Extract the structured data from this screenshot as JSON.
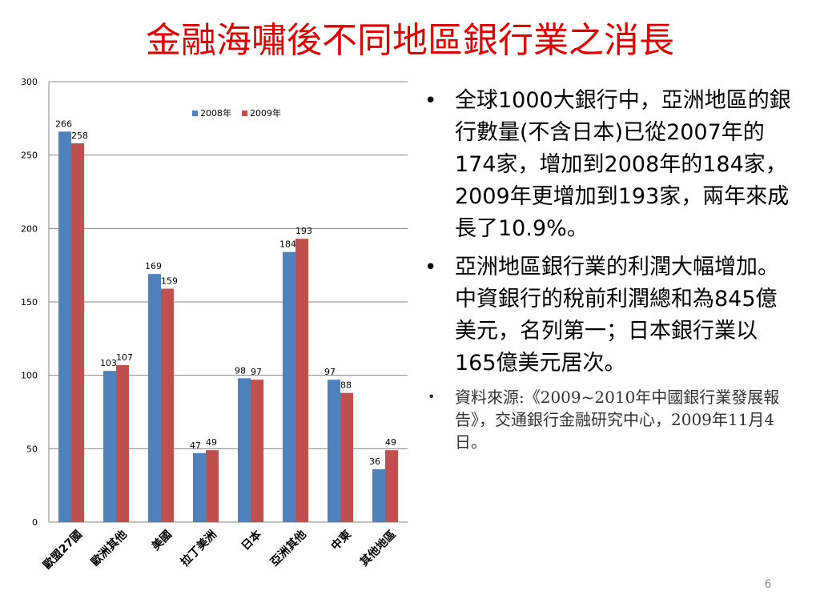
{
  "slide": {
    "title": "金融海嘯後不同地區銀行業之消長",
    "page_number": "6"
  },
  "bullets": [
    "全球1000大銀行中，亞洲地區的銀行數量(不含日本)已從2007年的174家，增加到2008年的184家，2009年更增加到193家，兩年來成長了10.9%。",
    "亞洲地區銀行業的利潤大幅增加。中資銀行的稅前利潤總和為845億美元，名列第一；日本銀行業以165億美元居次。"
  ],
  "source_note": "資料來源:《2009~2010年中國銀行業發展報告》，交通銀行金融研究中心，2009年11月4日。",
  "chart_data": {
    "type": "bar",
    "categories": [
      "歐盟27國",
      "歐洲其他",
      "美國",
      "拉丁美洲",
      "日本",
      "亞洲其他",
      "中東",
      "其他地區"
    ],
    "series": [
      {
        "name": "2008年",
        "values": [
          266,
          103,
          169,
          47,
          98,
          184,
          97,
          36
        ],
        "color": "#4f81bd"
      },
      {
        "name": "2009年",
        "values": [
          258,
          107,
          159,
          49,
          97,
          193,
          88,
          49
        ],
        "color": "#c0504d"
      }
    ],
    "ylim": [
      0,
      300
    ],
    "yticks": [
      0,
      50,
      100,
      150,
      200,
      250,
      300
    ],
    "grid": true,
    "legend_position": "top-center",
    "title": "",
    "xlabel": "",
    "ylabel": ""
  }
}
